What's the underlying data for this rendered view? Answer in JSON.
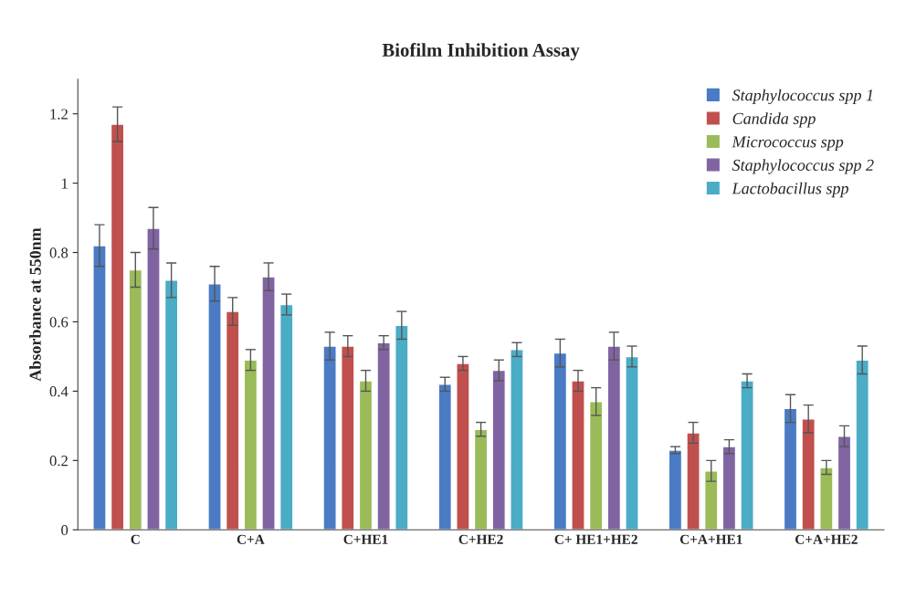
{
  "chart_data": {
    "type": "bar",
    "title": "Biofilm Inhibition Assay",
    "ylabel": "Absorbance at 550nm",
    "categories": [
      "C",
      "C+A",
      "C+HE1",
      "C+HE2",
      "C+ HE1+HE2",
      "C+A+HE1",
      "C+A+HE2"
    ],
    "series": [
      {
        "name": "Staphylococcus spp 1",
        "color": "#4a7bc4",
        "values": [
          0.82,
          0.71,
          0.53,
          0.42,
          0.51,
          0.23,
          0.35
        ],
        "errors": [
          0.06,
          0.05,
          0.04,
          0.02,
          0.04,
          0.01,
          0.04
        ]
      },
      {
        "name": "Candida spp",
        "color": "#c0504d",
        "values": [
          1.17,
          0.63,
          0.53,
          0.48,
          0.43,
          0.28,
          0.32
        ],
        "errors": [
          0.05,
          0.04,
          0.03,
          0.02,
          0.03,
          0.03,
          0.04
        ]
      },
      {
        "name": "Micrococcus spp",
        "color": "#9bbb59",
        "values": [
          0.75,
          0.49,
          0.43,
          0.29,
          0.37,
          0.17,
          0.18
        ],
        "errors": [
          0.05,
          0.03,
          0.03,
          0.02,
          0.04,
          0.03,
          0.02
        ]
      },
      {
        "name": "Staphylococcus spp 2",
        "color": "#8064a2",
        "values": [
          0.87,
          0.73,
          0.54,
          0.46,
          0.53,
          0.24,
          0.27
        ],
        "errors": [
          0.06,
          0.04,
          0.02,
          0.03,
          0.04,
          0.02,
          0.03
        ]
      },
      {
        "name": "Lactobacillus spp",
        "color": "#4bacc6",
        "values": [
          0.72,
          0.65,
          0.59,
          0.52,
          0.5,
          0.43,
          0.49
        ],
        "errors": [
          0.05,
          0.03,
          0.04,
          0.02,
          0.03,
          0.02,
          0.04
        ]
      }
    ],
    "ylim": [
      0,
      1.3
    ],
    "yticks": [
      0,
      0.2,
      0.4,
      0.6,
      0.8,
      1,
      1.2
    ],
    "grid": false,
    "legend": "top right"
  }
}
